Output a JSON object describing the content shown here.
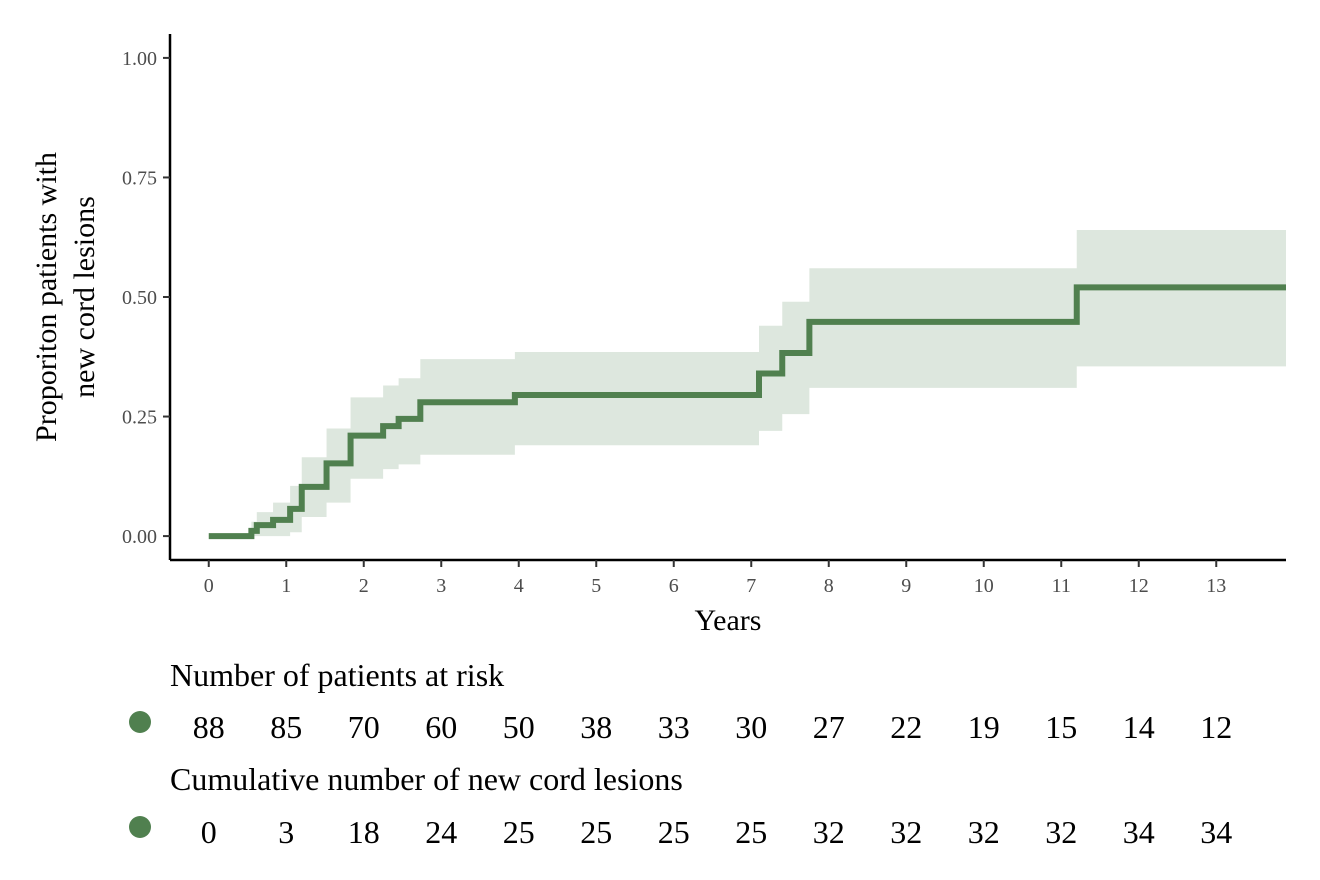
{
  "chart_data": {
    "type": "line",
    "step": true,
    "ylabel_lines": [
      "Proporiton patients with",
      "new cord lesions"
    ],
    "xlabel": "Years",
    "xlim": [
      -0.5,
      13.9
    ],
    "ylim": [
      -0.05,
      1.05
    ],
    "x_ticks": [
      0,
      1,
      2,
      3,
      4,
      5,
      6,
      7,
      8,
      9,
      10,
      11,
      12,
      13
    ],
    "y_ticks": [
      0,
      0.25,
      0.5,
      0.75,
      1.0
    ],
    "y_tick_labels": [
      "0.00",
      "0.25",
      "0.50",
      "0.75",
      "1.00"
    ],
    "grid": false,
    "line_color": "#50804f",
    "band_color": "#dde7de",
    "series": [
      {
        "steps": [
          {
            "x": 0.0,
            "y": 0.0,
            "lo": 0.0,
            "hi": 0.0
          },
          {
            "x": 0.55,
            "y": 0.011,
            "lo": 0.0,
            "hi": 0.03
          },
          {
            "x": 0.62,
            "y": 0.023,
            "lo": 0.0,
            "hi": 0.05
          },
          {
            "x": 0.83,
            "y": 0.034,
            "lo": 0.0,
            "hi": 0.07
          },
          {
            "x": 1.05,
            "y": 0.057,
            "lo": 0.008,
            "hi": 0.105
          },
          {
            "x": 1.2,
            "y": 0.103,
            "lo": 0.04,
            "hi": 0.165
          },
          {
            "x": 1.52,
            "y": 0.152,
            "lo": 0.07,
            "hi": 0.225
          },
          {
            "x": 1.83,
            "y": 0.21,
            "lo": 0.12,
            "hi": 0.29
          },
          {
            "x": 2.25,
            "y": 0.23,
            "lo": 0.14,
            "hi": 0.315
          },
          {
            "x": 2.45,
            "y": 0.245,
            "lo": 0.15,
            "hi": 0.33
          },
          {
            "x": 2.73,
            "y": 0.28,
            "lo": 0.17,
            "hi": 0.37
          },
          {
            "x": 3.95,
            "y": 0.295,
            "lo": 0.19,
            "hi": 0.385
          },
          {
            "x": 7.1,
            "y": 0.34,
            "lo": 0.22,
            "hi": 0.44
          },
          {
            "x": 7.4,
            "y": 0.383,
            "lo": 0.255,
            "hi": 0.49
          },
          {
            "x": 7.75,
            "y": 0.448,
            "lo": 0.31,
            "hi": 0.56
          },
          {
            "x": 11.2,
            "y": 0.52,
            "lo": 0.355,
            "hi": 0.64
          }
        ],
        "x_end": 13.9
      }
    ],
    "risk_table": {
      "at_risk_title": "Number of patients at risk",
      "at_risk": [
        "88",
        "85",
        "70",
        "60",
        "50",
        "38",
        "33",
        "30",
        "27",
        "22",
        "19",
        "15",
        "14",
        "12"
      ],
      "cumulative_title": "Cumulative number of new cord lesions",
      "cumulative": [
        "0",
        "3",
        "18",
        "24",
        "25",
        "25",
        "25",
        "25",
        "32",
        "32",
        "32",
        "32",
        "34",
        "34"
      ],
      "marker_color": "#50804f"
    }
  }
}
